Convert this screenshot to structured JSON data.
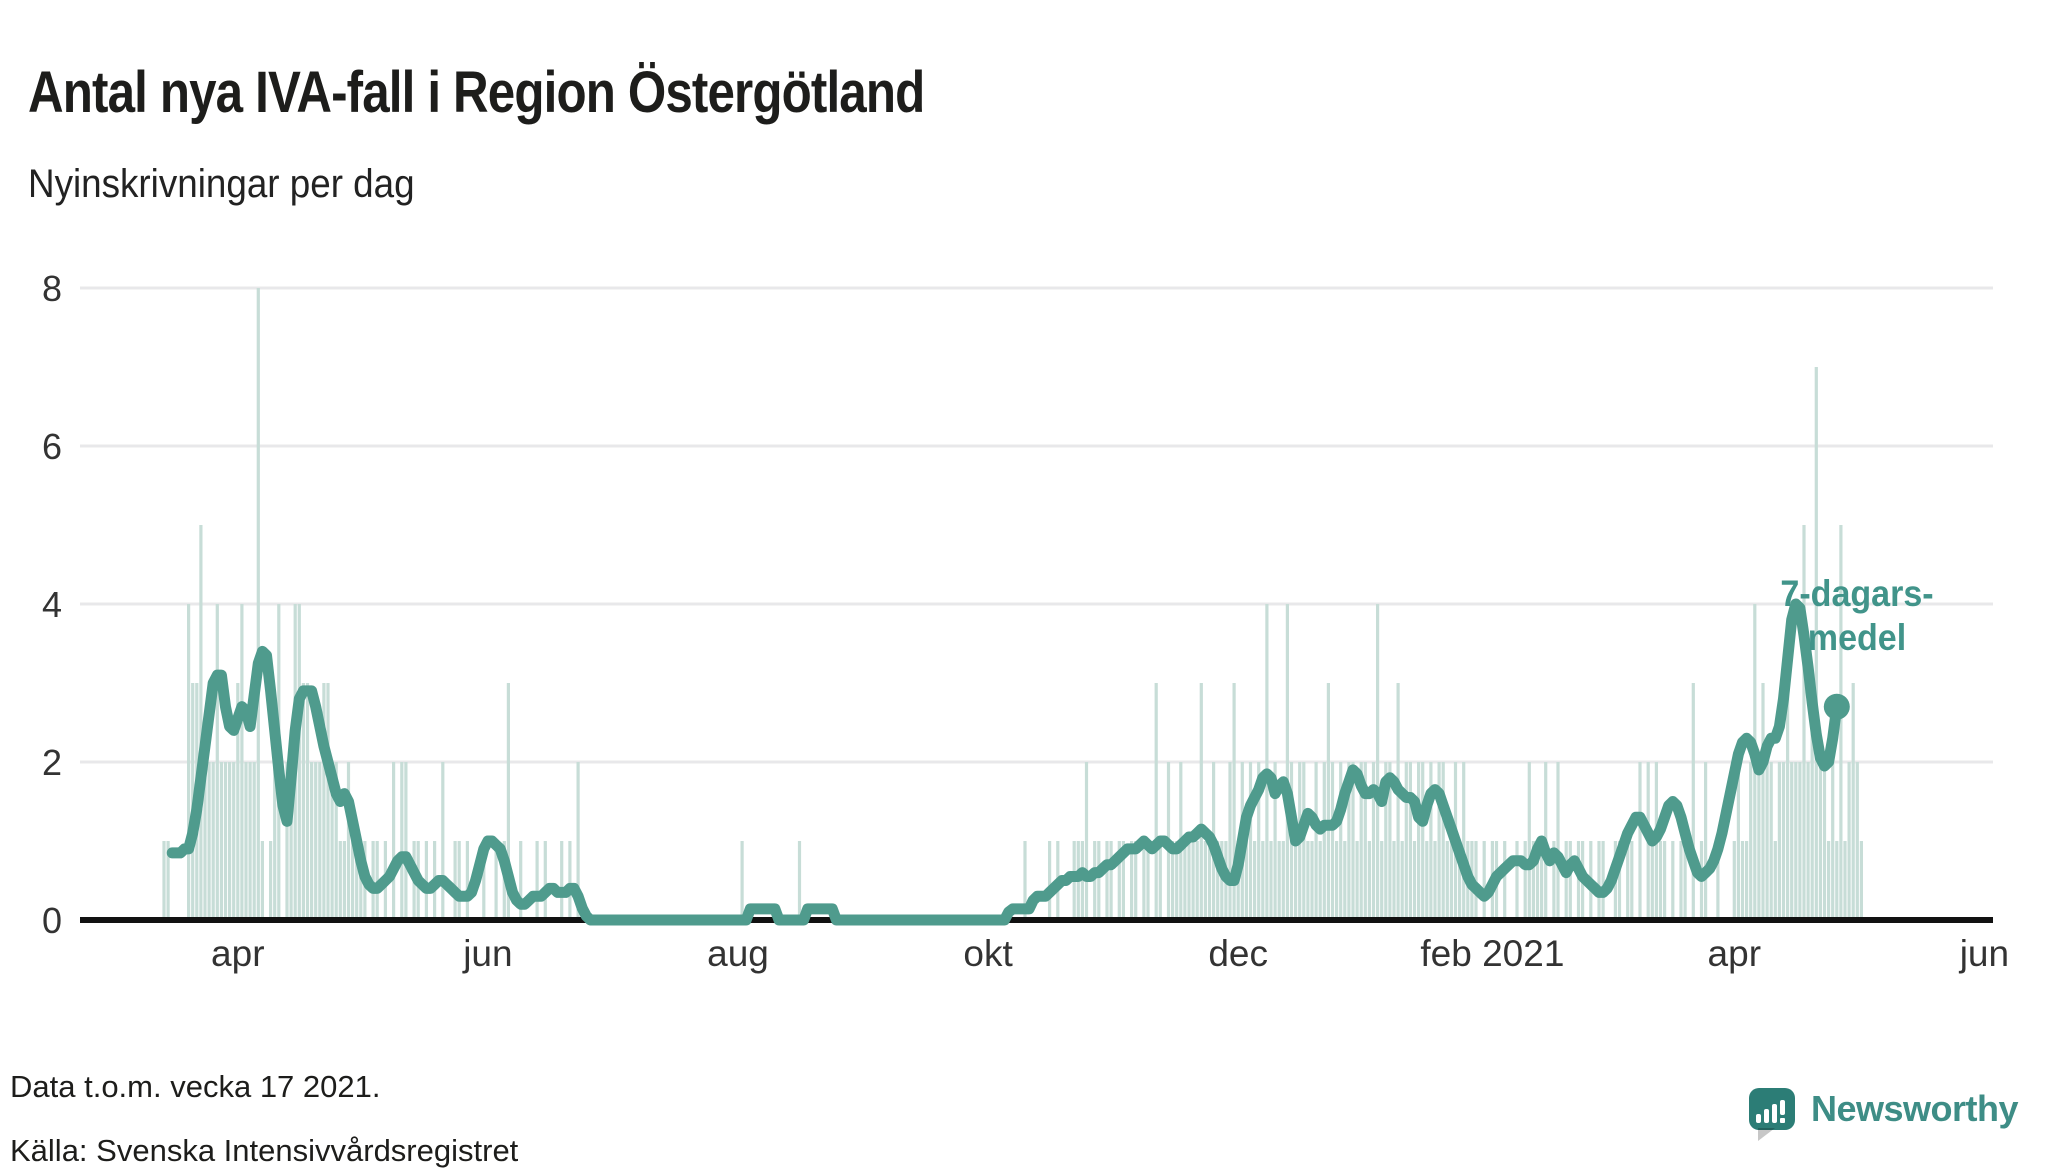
{
  "header": {
    "title": "Antal nya IVA-fall i Region Östergötland",
    "subtitle": "Nyinskrivningar per dag"
  },
  "annotation": {
    "line1": "7-dagars-",
    "line2": "medel"
  },
  "footer": {
    "note": "Data t.o.m. vecka 17 2021.",
    "source": "Källa: Svenska Intensivvårdsregistret",
    "logo_text": "Newsworthy"
  },
  "colors": {
    "bar": "#c7ddd7",
    "line": "#4f9b8d",
    "annotation": "#41948a",
    "grid": "#e8e8ea",
    "axis": "#111111",
    "tick": "#333333",
    "logo_icon": "#2c7d76",
    "logo_text": "#3e8d86"
  },
  "chart_data": {
    "type": "bar",
    "title": "Antal nya IVA-fall i Region Östergötland",
    "subtitle": "Nyinskrivningar per dag",
    "xlabel": "",
    "ylabel": "",
    "ylim": [
      0,
      8
    ],
    "y_ticks": [
      0,
      2,
      4,
      6,
      8
    ],
    "grid": true,
    "start_date": "2020-03-14",
    "end_date": "2021-05-02",
    "x_ticks": [
      {
        "label": "apr",
        "day": 18
      },
      {
        "label": "jun",
        "day": 79
      },
      {
        "label": "aug",
        "day": 140
      },
      {
        "label": "okt",
        "day": 201
      },
      {
        "label": "dec",
        "day": 262
      },
      {
        "label": "feb 2021",
        "day": 324
      },
      {
        "label": "apr",
        "day": 383
      },
      {
        "label": "jun",
        "day": 444
      }
    ],
    "series": [
      {
        "name": "Nyinskrivningar per dag",
        "type": "bar"
      },
      {
        "name": "7-dagars-medel",
        "type": "line"
      }
    ],
    "bars": [
      1,
      1,
      0,
      0,
      0,
      0,
      4,
      3,
      3,
      5,
      2,
      2,
      2,
      4,
      2,
      2,
      2,
      2,
      3,
      4,
      2,
      2,
      2,
      8,
      1,
      0,
      1,
      2,
      4,
      0,
      2,
      2,
      4,
      4,
      3,
      3,
      2,
      2,
      2,
      3,
      3,
      2,
      2,
      1,
      1,
      2,
      1,
      1,
      1,
      1,
      0,
      1,
      1,
      0,
      1,
      0,
      2,
      0,
      2,
      2,
      0,
      1,
      1,
      0,
      1,
      0,
      1,
      0,
      2,
      0,
      0,
      1,
      1,
      0,
      1,
      0,
      0,
      0,
      1,
      0,
      0,
      1,
      0,
      1,
      3,
      0,
      0,
      1,
      0,
      0,
      0,
      1,
      0,
      1,
      0,
      0,
      0,
      1,
      0,
      1,
      0,
      2,
      0,
      0,
      0,
      0,
      0,
      0,
      0,
      0,
      0,
      0,
      0,
      0,
      0,
      0,
      0,
      0,
      0,
      0,
      0,
      0,
      0,
      0,
      0,
      0,
      0,
      0,
      0,
      0,
      0,
      0,
      0,
      0,
      0,
      0,
      0,
      0,
      0,
      0,
      0,
      1,
      0,
      0,
      0,
      0,
      0,
      0,
      0,
      0,
      0,
      0,
      0,
      0,
      0,
      1,
      0,
      0,
      0,
      0,
      0,
      0,
      0,
      0,
      0,
      0,
      0,
      0,
      0,
      0,
      0,
      0,
      0,
      0,
      0,
      0,
      0,
      0,
      0,
      0,
      0,
      0,
      0,
      0,
      0,
      0,
      0,
      0,
      0,
      0,
      0,
      0,
      0,
      0,
      0,
      0,
      0,
      0,
      0,
      0,
      0,
      0,
      0,
      0,
      0,
      0,
      0,
      0,
      0,
      0,
      1,
      0,
      0,
      0,
      0,
      0,
      1,
      0,
      1,
      0,
      0,
      0,
      1,
      1,
      1,
      2,
      0,
      1,
      1,
      0,
      1,
      1,
      0,
      1,
      1,
      0,
      1,
      1,
      0,
      1,
      1,
      0,
      3,
      1,
      0,
      2,
      1,
      1,
      2,
      1,
      1,
      1,
      1,
      3,
      1,
      1,
      2,
      1,
      1,
      1,
      2,
      3,
      1,
      2,
      1,
      2,
      1,
      2,
      1,
      4,
      1,
      2,
      1,
      1,
      4,
      2,
      1,
      2,
      2,
      1,
      1,
      2,
      1,
      2,
      3,
      2,
      1,
      2,
      1,
      2,
      2,
      1,
      2,
      2,
      1,
      2,
      4,
      1,
      2,
      2,
      1,
      3,
      1,
      2,
      2,
      1,
      2,
      2,
      1,
      2,
      1,
      2,
      2,
      1,
      1,
      2,
      1,
      2,
      1,
      1,
      1,
      0,
      1,
      0,
      1,
      1,
      0,
      1,
      0,
      0,
      1,
      0,
      1,
      2,
      1,
      1,
      1,
      2,
      0,
      1,
      2,
      0,
      1,
      1,
      0,
      1,
      1,
      0,
      1,
      0,
      1,
      1,
      0,
      0,
      1,
      1,
      0,
      1,
      1,
      0,
      2,
      0,
      2,
      1,
      2,
      1,
      1,
      0,
      1,
      0,
      1,
      1,
      0,
      3,
      0,
      1,
      2,
      0,
      0,
      1,
      0,
      0,
      0,
      1,
      2,
      1,
      1,
      2,
      4,
      2,
      3,
      2,
      2,
      1,
      2,
      2,
      3,
      2,
      2,
      2,
      5,
      2,
      3,
      7,
      2,
      2,
      1,
      2,
      1,
      5,
      1,
      2,
      3,
      2,
      1
    ],
    "avg_start_day": 2,
    "avg": [
      0.85,
      0.85,
      0.85,
      0.9,
      0.9,
      1.1,
      1.4,
      1.8,
      2.2,
      2.6,
      3.0,
      3.1,
      3.1,
      2.7,
      2.45,
      2.4,
      2.55,
      2.7,
      2.65,
      2.45,
      2.85,
      3.25,
      3.4,
      3.35,
      2.9,
      2.4,
      1.9,
      1.45,
      1.25,
      1.8,
      2.4,
      2.8,
      2.9,
      2.9,
      2.9,
      2.7,
      2.45,
      2.2,
      2.0,
      1.8,
      1.6,
      1.5,
      1.6,
      1.5,
      1.25,
      1.0,
      0.75,
      0.55,
      0.45,
      0.4,
      0.4,
      0.45,
      0.5,
      0.55,
      0.65,
      0.75,
      0.8,
      0.8,
      0.7,
      0.6,
      0.5,
      0.45,
      0.4,
      0.4,
      0.45,
      0.5,
      0.5,
      0.45,
      0.4,
      0.35,
      0.3,
      0.3,
      0.3,
      0.35,
      0.5,
      0.7,
      0.9,
      1.0,
      1.0,
      0.95,
      0.9,
      0.75,
      0.55,
      0.35,
      0.25,
      0.2,
      0.2,
      0.25,
      0.3,
      0.3,
      0.3,
      0.35,
      0.4,
      0.4,
      0.35,
      0.35,
      0.35,
      0.4,
      0.4,
      0.3,
      0.15,
      0.05,
      0,
      0,
      0,
      0,
      0,
      0,
      0,
      0,
      0,
      0,
      0,
      0,
      0,
      0,
      0,
      0,
      0,
      0,
      0,
      0,
      0,
      0,
      0,
      0,
      0,
      0,
      0,
      0,
      0,
      0,
      0,
      0,
      0,
      0,
      0,
      0,
      0,
      0,
      0,
      0.14,
      0.14,
      0.14,
      0.14,
      0.14,
      0.14,
      0.14,
      0,
      0,
      0,
      0,
      0,
      0,
      0,
      0.14,
      0.14,
      0.14,
      0.14,
      0.14,
      0.14,
      0.14,
      0,
      0,
      0,
      0,
      0,
      0,
      0,
      0,
      0,
      0,
      0,
      0,
      0,
      0,
      0,
      0,
      0,
      0,
      0,
      0,
      0,
      0,
      0,
      0,
      0,
      0,
      0,
      0,
      0,
      0,
      0,
      0,
      0,
      0,
      0,
      0,
      0,
      0,
      0,
      0,
      0,
      0,
      0.1,
      0.14,
      0.14,
      0.14,
      0.14,
      0.14,
      0.25,
      0.3,
      0.3,
      0.3,
      0.35,
      0.4,
      0.45,
      0.5,
      0.5,
      0.55,
      0.55,
      0.55,
      0.6,
      0.55,
      0.55,
      0.6,
      0.6,
      0.65,
      0.7,
      0.7,
      0.75,
      0.8,
      0.85,
      0.9,
      0.9,
      0.9,
      0.95,
      1.0,
      0.95,
      0.9,
      0.95,
      1.0,
      1.0,
      0.95,
      0.9,
      0.9,
      0.95,
      1.0,
      1.05,
      1.05,
      1.1,
      1.15,
      1.1,
      1.05,
      0.95,
      0.8,
      0.65,
      0.55,
      0.5,
      0.5,
      0.7,
      1.0,
      1.3,
      1.45,
      1.55,
      1.65,
      1.8,
      1.85,
      1.8,
      1.6,
      1.7,
      1.75,
      1.6,
      1.3,
      1.0,
      1.05,
      1.2,
      1.35,
      1.3,
      1.2,
      1.15,
      1.2,
      1.2,
      1.2,
      1.25,
      1.4,
      1.6,
      1.75,
      1.9,
      1.85,
      1.7,
      1.6,
      1.6,
      1.65,
      1.6,
      1.5,
      1.75,
      1.8,
      1.75,
      1.65,
      1.6,
      1.55,
      1.55,
      1.5,
      1.3,
      1.25,
      1.45,
      1.6,
      1.65,
      1.6,
      1.45,
      1.3,
      1.15,
      1.0,
      0.85,
      0.7,
      0.55,
      0.45,
      0.4,
      0.35,
      0.3,
      0.35,
      0.45,
      0.55,
      0.6,
      0.65,
      0.7,
      0.75,
      0.75,
      0.75,
      0.7,
      0.7,
      0.75,
      0.9,
      1.0,
      0.85,
      0.75,
      0.85,
      0.8,
      0.7,
      0.6,
      0.7,
      0.75,
      0.65,
      0.55,
      0.5,
      0.45,
      0.4,
      0.35,
      0.35,
      0.4,
      0.5,
      0.65,
      0.8,
      0.95,
      1.1,
      1.2,
      1.3,
      1.3,
      1.2,
      1.1,
      1.0,
      1.05,
      1.15,
      1.3,
      1.45,
      1.5,
      1.45,
      1.3,
      1.1,
      0.9,
      0.75,
      0.6,
      0.55,
      0.6,
      0.65,
      0.75,
      0.9,
      1.1,
      1.35,
      1.6,
      1.85,
      2.1,
      2.25,
      2.3,
      2.25,
      2.1,
      1.9,
      2.0,
      2.2,
      2.3,
      2.3,
      2.45,
      2.8,
      3.3,
      3.8,
      4.0,
      3.95,
      3.6,
      3.2,
      2.75,
      2.35,
      2.05,
      1.95,
      2.0,
      2.3,
      2.7
    ]
  }
}
